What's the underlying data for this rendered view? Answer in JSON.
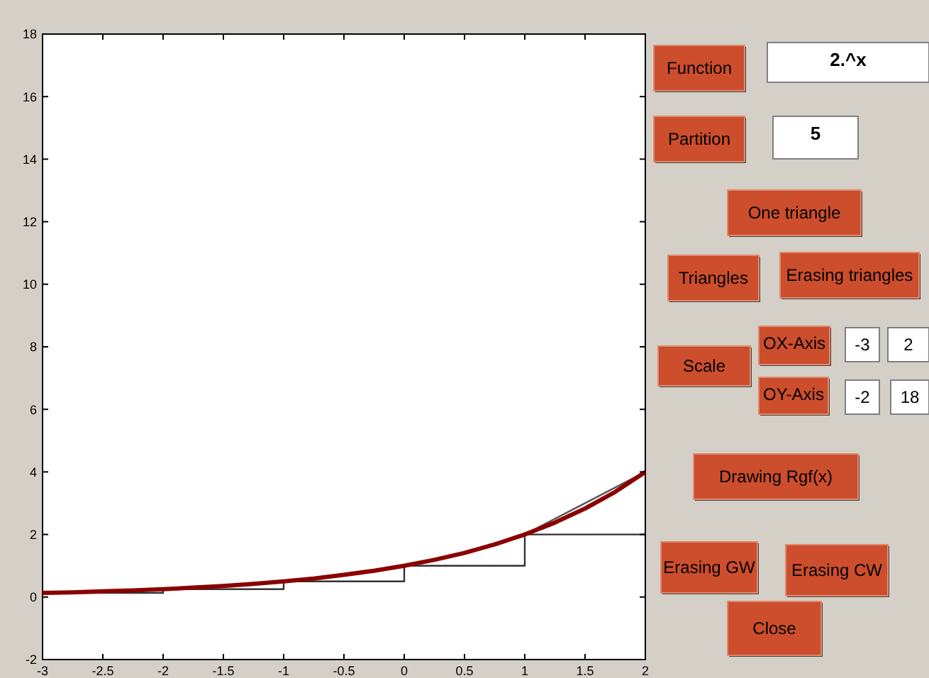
{
  "chart_data": [
    {
      "type": "line",
      "xlim": [
        -3,
        2
      ],
      "ylim": [
        -2,
        18
      ],
      "xticks": [
        -3,
        -2.5,
        -2,
        -1.5,
        -1,
        -0.5,
        0,
        0.5,
        1,
        1.5,
        2
      ],
      "yticks": [
        -2,
        0,
        2,
        4,
        6,
        8,
        10,
        12,
        14,
        16,
        18
      ],
      "grid": false,
      "marker": "none",
      "series": [
        {
          "type": "step",
          "color": "#333333",
          "x": [
            -3,
            -2,
            -1,
            0,
            1,
            2
          ],
          "values": [
            0.13,
            0.25,
            0.5,
            1,
            2,
            2
          ]
        },
        {
          "type": "line",
          "color": "#555555",
          "x": [
            1,
            2
          ],
          "values": [
            2,
            4
          ]
        },
        {
          "type": "line",
          "color": "#8b0000",
          "x": [
            -3,
            -2.75,
            -2.5,
            -2.25,
            -2,
            -1.75,
            -1.5,
            -1.25,
            -1,
            -0.75,
            -0.5,
            -0.25,
            0,
            0.25,
            0.5,
            0.75,
            1,
            1.25,
            1.5,
            1.75,
            2
          ],
          "values": [
            0.13,
            0.15,
            0.18,
            0.21,
            0.25,
            0.3,
            0.35,
            0.42,
            0.5,
            0.59,
            0.71,
            0.84,
            1,
            1.19,
            1.41,
            1.68,
            2,
            2.38,
            2.83,
            3.36,
            4
          ]
        }
      ]
    },
    {
      "type": "other",
      "annotations": [
        "Function",
        "2.^x",
        "Partition",
        "5",
        "One triangle",
        "Triangles",
        "Erasing triangles",
        "Scale",
        "OX-Axis",
        "-3",
        "2",
        "OY-Axis",
        "-2",
        "18",
        "Drawing Rgf(x)",
        "Erasing GW",
        "Erasing CW",
        "Close"
      ]
    }
  ]
}
